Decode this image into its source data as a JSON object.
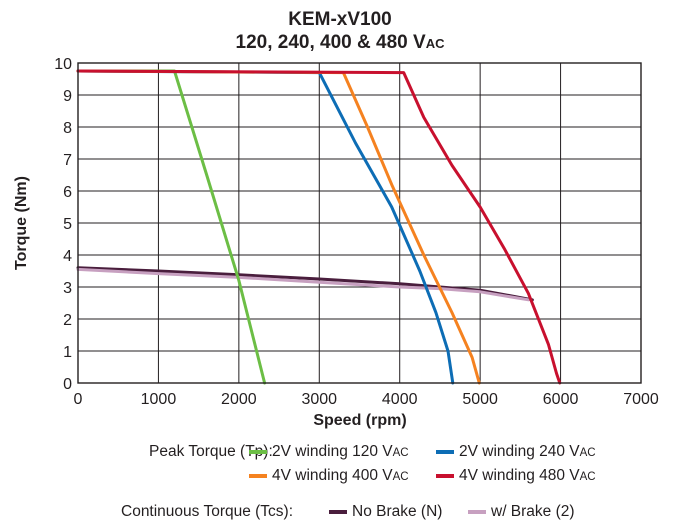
{
  "chart_data": {
    "type": "line",
    "title": "KEM-xV100",
    "subtitle_main": "120, 240, 400 & 480 V",
    "subtitle_suffix": "AC",
    "xlabel": "Speed (rpm)",
    "ylabel": "Torque (Nm)",
    "xlim": [
      0,
      7000
    ],
    "ylim": [
      0,
      10
    ],
    "xticks": [
      0,
      1000,
      2000,
      3000,
      4000,
      5000,
      6000,
      7000
    ],
    "yticks": [
      0,
      1,
      2,
      3,
      4,
      5,
      6,
      7,
      8,
      9,
      10
    ],
    "grid": true,
    "series": [
      {
        "name": "2V winding 120 V",
        "name_suffix": "AC",
        "group": "peak",
        "color": "#6cbe45",
        "points": [
          [
            0,
            9.75
          ],
          [
            1200,
            9.75
          ],
          [
            1600,
            6.5
          ],
          [
            2000,
            3.2
          ],
          [
            2320,
            0
          ]
        ]
      },
      {
        "name": "2V winding 240 V",
        "name_suffix": "AC",
        "group": "peak",
        "color": "#0d6db5",
        "points": [
          [
            0,
            9.75
          ],
          [
            3000,
            9.7
          ],
          [
            3450,
            7.5
          ],
          [
            3900,
            5.5
          ],
          [
            4250,
            3.5
          ],
          [
            4450,
            2.2
          ],
          [
            4600,
            1.0
          ],
          [
            4660,
            0
          ]
        ]
      },
      {
        "name": "4V winding 400 V",
        "name_suffix": "AC",
        "group": "peak",
        "color": "#f58220",
        "points": [
          [
            0,
            9.75
          ],
          [
            3300,
            9.7
          ],
          [
            3600,
            8.0
          ],
          [
            3900,
            6.2
          ],
          [
            4300,
            4.0
          ],
          [
            4650,
            2.2
          ],
          [
            4900,
            0.8
          ],
          [
            4990,
            0
          ]
        ]
      },
      {
        "name": "4V winding 480 V",
        "name_suffix": "AC",
        "group": "peak",
        "color": "#c8102e",
        "points": [
          [
            0,
            9.75
          ],
          [
            4050,
            9.7
          ],
          [
            4300,
            8.3
          ],
          [
            4650,
            6.8
          ],
          [
            5000,
            5.5
          ],
          [
            5300,
            4.2
          ],
          [
            5600,
            2.8
          ],
          [
            5850,
            1.2
          ],
          [
            5950,
            0.3
          ],
          [
            5990,
            0
          ]
        ]
      },
      {
        "name": "No Brake (N)",
        "group": "continuous",
        "color": "#4a1e3d",
        "points": [
          [
            0,
            3.6
          ],
          [
            1000,
            3.5
          ],
          [
            2000,
            3.38
          ],
          [
            3000,
            3.25
          ],
          [
            4000,
            3.1
          ],
          [
            4500,
            3.0
          ],
          [
            5000,
            2.9
          ],
          [
            5650,
            2.6
          ]
        ]
      },
      {
        "name": "w/ Brake (2)",
        "group": "continuous",
        "color": "#c7a0c0",
        "points": [
          [
            0,
            3.55
          ],
          [
            1000,
            3.42
          ],
          [
            2000,
            3.3
          ],
          [
            3000,
            3.15
          ],
          [
            4000,
            3.0
          ],
          [
            4500,
            2.95
          ],
          [
            5000,
            2.85
          ],
          [
            5600,
            2.6
          ]
        ]
      }
    ]
  },
  "legend": {
    "peak_label": "Peak Torque (Tp):",
    "continuous_label": "Continuous Torque (Tcs):"
  }
}
